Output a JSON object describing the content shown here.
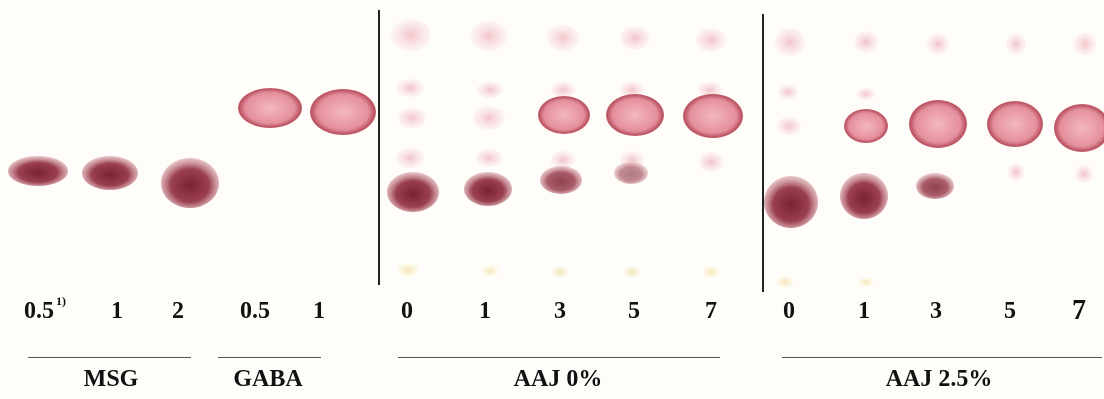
{
  "lanes": [
    {
      "label": "0.5",
      "sup": "1)"
    },
    {
      "label": "1"
    },
    {
      "label": "2"
    },
    {
      "label": "0.5"
    },
    {
      "label": "1"
    },
    {
      "label": "0"
    },
    {
      "label": "1"
    },
    {
      "label": "3"
    },
    {
      "label": "5"
    },
    {
      "label": "7"
    },
    {
      "label": "0"
    },
    {
      "label": "1"
    },
    {
      "label": "3"
    },
    {
      "label": "5"
    },
    {
      "label": "7"
    }
  ],
  "groups": [
    {
      "label": "MSG"
    },
    {
      "label": "GABA"
    },
    {
      "label": "AAJ 0%"
    },
    {
      "label": "AAJ 2.5%"
    }
  ],
  "colors": {
    "spot_dark": "#8a2f3c",
    "spot_mid": "#c25566",
    "spot_light": "#e7a8b2",
    "spot_faint": "#f4d3d8",
    "origin": "#f6eec6",
    "divider": "#222222"
  }
}
